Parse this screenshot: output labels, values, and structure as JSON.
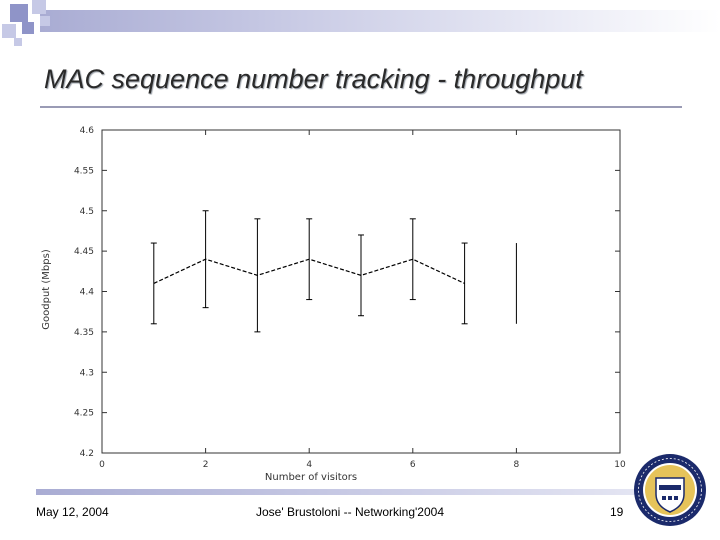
{
  "slide": {
    "title": "MAC sequence number tracking - throughput",
    "footer_left": "May 12, 2004",
    "footer_center": "Jose' Brustoloni -- Networking'2004",
    "footer_right": "19"
  },
  "colors": {
    "accent_bar": "#a9acd3",
    "line": "#000000"
  },
  "logo_icon": "university-of-pittsburgh-seal-icon",
  "chart_data": {
    "type": "line",
    "title": "",
    "xlabel": "Number of visitors",
    "ylabel": "Goodput (Mbps)",
    "xlim": [
      0,
      10
    ],
    "ylim": [
      4.2,
      4.6
    ],
    "x_ticks": [
      "0",
      "2",
      "4",
      "6",
      "8",
      "10"
    ],
    "y_ticks": [
      "4.2",
      "4.25",
      "4.3",
      "4.35",
      "4.4",
      "4.45",
      "4.5",
      "4.55",
      "4.6"
    ],
    "grid": false,
    "series": [
      {
        "x": [
          1,
          2,
          3,
          4,
          5,
          6,
          7
        ],
        "y": [
          4.41,
          4.44,
          4.42,
          4.44,
          4.42,
          4.44,
          4.41
        ],
        "error_low": [
          4.36,
          4.38,
          4.35,
          4.39,
          4.37,
          4.39,
          4.36
        ],
        "error_high": [
          4.46,
          4.5,
          4.49,
          4.49,
          4.47,
          4.49,
          4.46
        ]
      }
    ],
    "extra_error_bars": [
      {
        "x": 8,
        "low": 4.36,
        "high": 4.46
      }
    ]
  }
}
